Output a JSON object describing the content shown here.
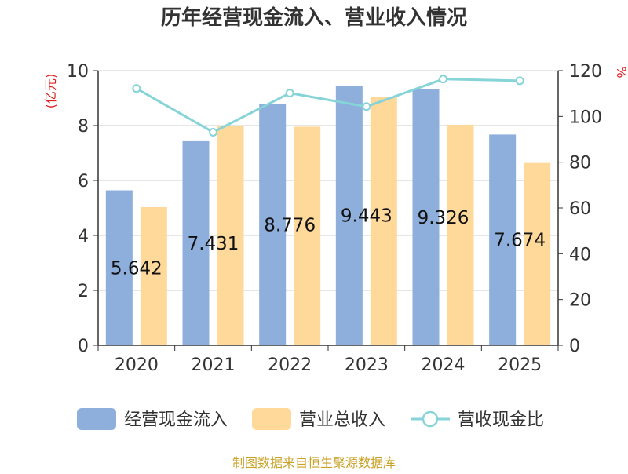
{
  "chart_data": {
    "type": "bar",
    "title": "历年经营现金流入、营业收入情况",
    "categories": [
      "2020",
      "2021",
      "2022",
      "2023",
      "2024",
      "2025"
    ],
    "series": [
      {
        "name": "经营现金流入",
        "axis": "left",
        "type": "bar",
        "color": "#8eaedb",
        "values": [
          5.642,
          7.431,
          8.776,
          9.443,
          9.326,
          7.674
        ]
      },
      {
        "name": "营业总收入",
        "axis": "left",
        "type": "bar",
        "color": "#ffd99a",
        "values": [
          5.03,
          7.98,
          7.96,
          9.05,
          8.03,
          6.64
        ]
      },
      {
        "name": "营收现金比",
        "axis": "right",
        "type": "line",
        "color": "#86d3d8",
        "values": [
          112.2,
          93.1,
          110.2,
          104.3,
          116.3,
          115.6
        ]
      }
    ],
    "data_labels": [
      "5.642",
      "7.431",
      "8.776",
      "9.443",
      "9.326",
      "7.674"
    ],
    "y_left": {
      "label": "(亿元)",
      "ylim": [
        0,
        10
      ],
      "ticks": [
        "0",
        "2",
        "4",
        "6",
        "8",
        "10"
      ]
    },
    "y_right": {
      "label": "%",
      "ylim": [
        0,
        120
      ],
      "ticks": [
        "0",
        "20",
        "40",
        "60",
        "80",
        "100",
        "120"
      ]
    },
    "grid": true,
    "legend_position": "bottom",
    "axis_label_color": "#e02020",
    "source": "制图数据来自恒生聚源数据库",
    "source_color": "#c9a227"
  }
}
